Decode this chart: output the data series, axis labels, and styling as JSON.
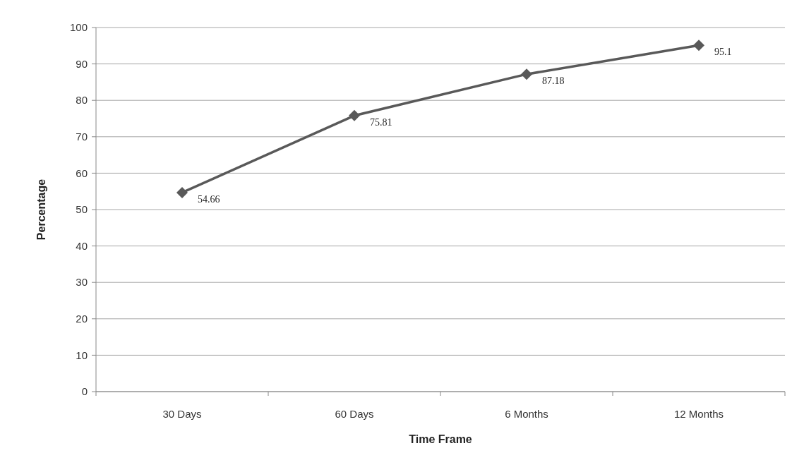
{
  "chart_data": {
    "type": "line",
    "xlabel": "Time Frame",
    "ylabel": "Percentage",
    "categories": [
      "30 Days",
      "60 Days",
      "6 Months",
      "12 Months"
    ],
    "series": [
      {
        "color": "#595959",
        "values": [
          54.66,
          75.81,
          87.18,
          95.1
        ]
      }
    ],
    "ylim": [
      0,
      100
    ],
    "yticks": [
      0,
      10,
      20,
      30,
      40,
      50,
      60,
      70,
      80,
      90,
      100
    ],
    "grid": "y",
    "marker": "diamond",
    "line_style": "solid",
    "data_labels": true
  }
}
